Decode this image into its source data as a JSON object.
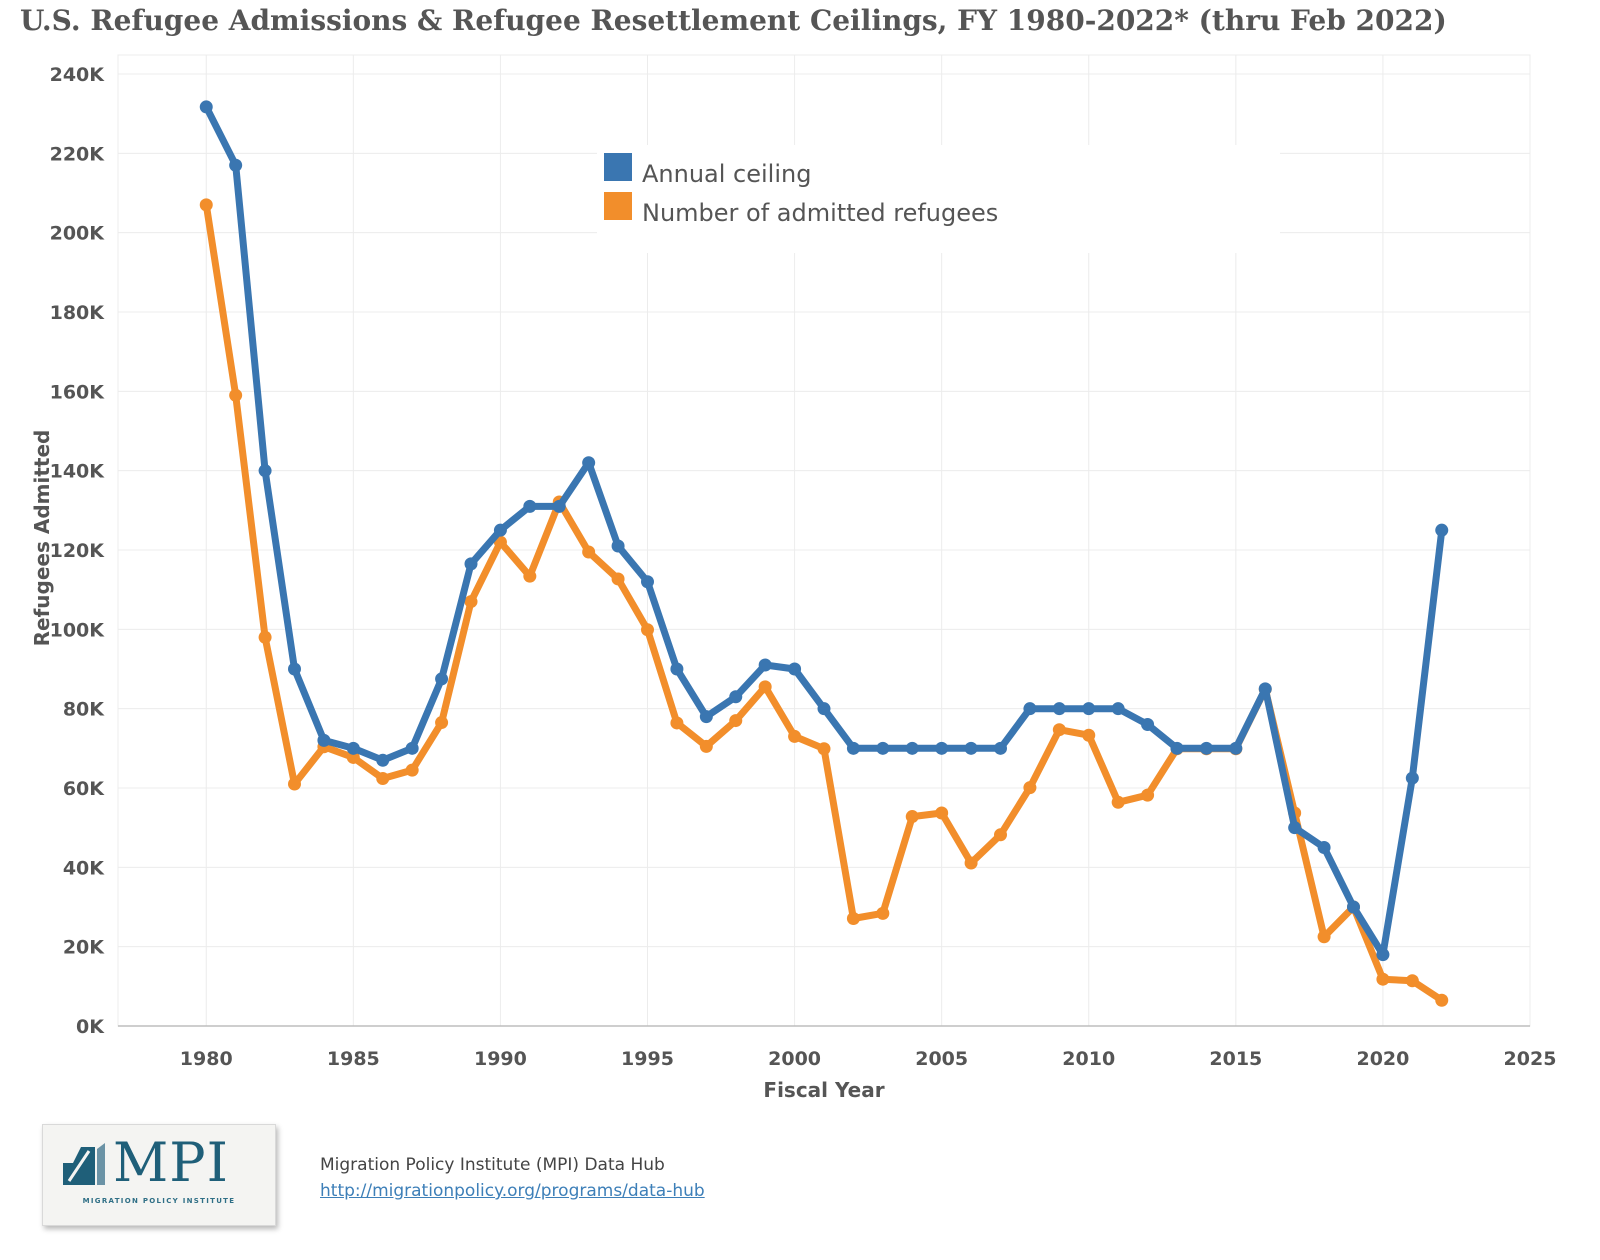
{
  "chart_data": {
    "type": "line",
    "title": "U.S. Refugee Admissions & Refugee Resettlement Ceilings, FY 1980-2022* (thru Feb 2022)",
    "xlabel": "Fiscal Year",
    "ylabel": "Refugees Admitted",
    "xlim": [
      1977,
      2025
    ],
    "ylim": [
      0,
      240000
    ],
    "x_ticks": [
      1980,
      1985,
      1990,
      1995,
      2000,
      2005,
      2010,
      2015,
      2020,
      2025
    ],
    "y_ticks": [
      0,
      20000,
      40000,
      60000,
      80000,
      100000,
      120000,
      140000,
      160000,
      180000,
      200000,
      220000,
      240000
    ],
    "y_tick_labels": [
      "0K",
      "20K",
      "40K",
      "60K",
      "80K",
      "100K",
      "120K",
      "140K",
      "160K",
      "180K",
      "200K",
      "220K",
      "240K"
    ],
    "grid": true,
    "legend_position": "top-center",
    "x": [
      1980,
      1981,
      1982,
      1983,
      1984,
      1985,
      1986,
      1987,
      1988,
      1989,
      1990,
      1991,
      1992,
      1993,
      1994,
      1995,
      1996,
      1997,
      1998,
      1999,
      2000,
      2001,
      2002,
      2003,
      2004,
      2005,
      2006,
      2007,
      2008,
      2009,
      2010,
      2011,
      2012,
      2013,
      2014,
      2015,
      2016,
      2017,
      2018,
      2019,
      2020,
      2021,
      2022
    ],
    "series": [
      {
        "name": "Annual ceiling",
        "color": "#3a76b1",
        "values": [
          231700,
          217000,
          140000,
          90000,
          72000,
          70000,
          67000,
          70000,
          87500,
          116500,
          125000,
          131000,
          131000,
          142000,
          121000,
          112000,
          90000,
          78000,
          83000,
          91000,
          90000,
          80000,
          70000,
          70000,
          70000,
          70000,
          70000,
          70000,
          80000,
          80000,
          80000,
          80000,
          76000,
          70000,
          70000,
          70000,
          85000,
          50000,
          45000,
          30000,
          18000,
          62500,
          125000
        ]
      },
      {
        "name": "Number of admitted refugees",
        "color": "#f28e2b",
        "values": [
          207000,
          159000,
          98000,
          61000,
          70400,
          67700,
          62400,
          64500,
          76500,
          107000,
          122000,
          113400,
          132100,
          119500,
          112700,
          99900,
          76400,
          70500,
          77000,
          85500,
          73000,
          69900,
          27100,
          28400,
          52800,
          53700,
          41100,
          48200,
          60100,
          74700,
          73300,
          56400,
          58200,
          69900,
          69900,
          69900,
          84900,
          53700,
          22500,
          30000,
          11800,
          11400,
          6500
        ]
      }
    ]
  },
  "footer": {
    "logo_text": "MPI",
    "logo_subtitle": "MIGRATION POLICY INSTITUTE",
    "source_label": "Migration Policy Institute (MPI) Data Hub",
    "source_url": "http://migrationpolicy.org/programs/data-hub"
  }
}
